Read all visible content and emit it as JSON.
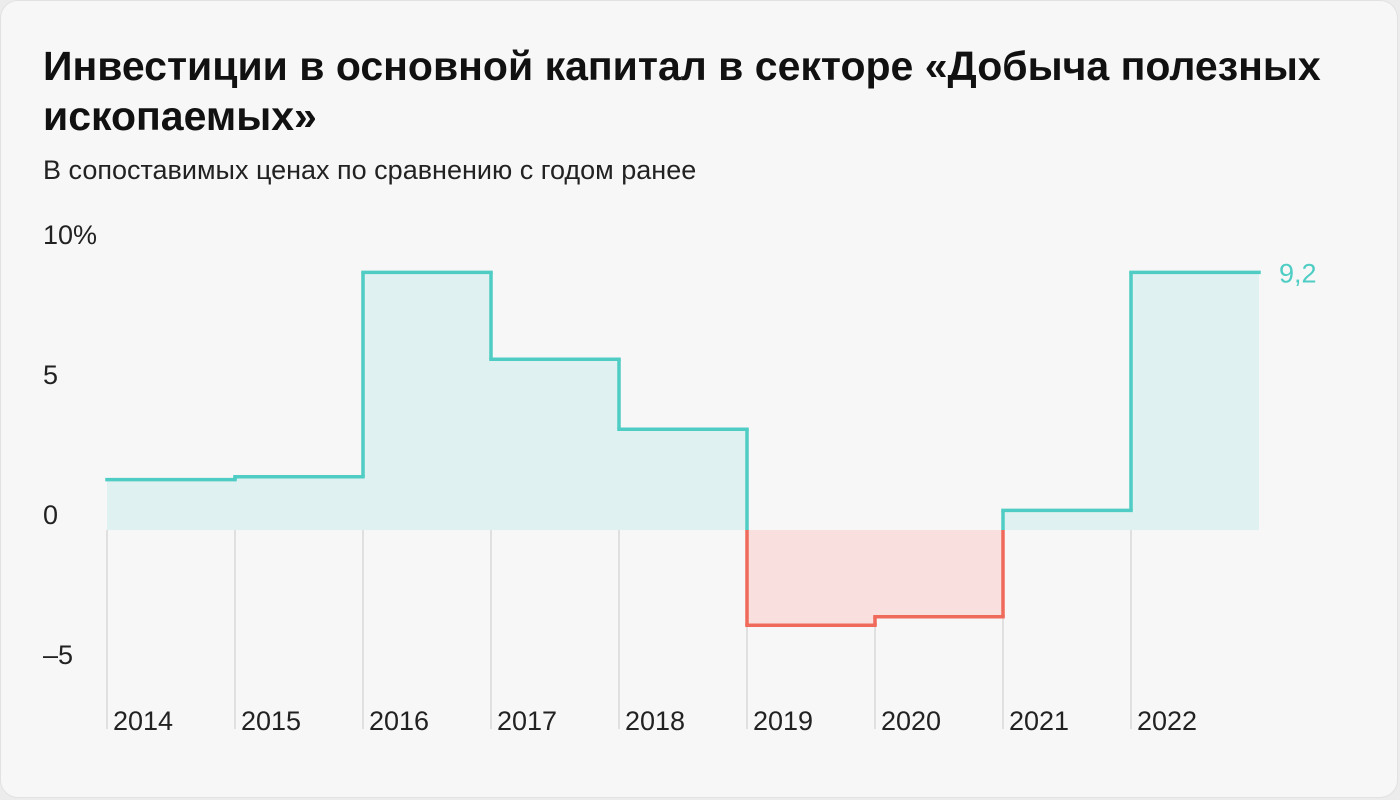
{
  "chart_data": {
    "type": "area",
    "title": "Инвестиции в основной капитал в секторе «Добыча полезных ископаемых»",
    "subtitle": "В сопоставимых ценах по сравнению с годом ранее",
    "categories": [
      "2014",
      "2015",
      "2016",
      "2017",
      "2018",
      "2019",
      "2020",
      "2021",
      "2022"
    ],
    "series": [
      {
        "values": [
          1.8,
          1.9,
          9.2,
          6.1,
          3.6,
          -3.4,
          -3.1,
          0.7,
          9.2
        ]
      }
    ],
    "ylim": [
      -6.5,
      10
    ],
    "y_ticks": [
      {
        "value": 10,
        "label": "10%"
      },
      {
        "value": 5,
        "label": "5"
      },
      {
        "value": 0,
        "label": "0"
      },
      {
        "value": -5,
        "label": "–5"
      }
    ],
    "end_label": "9,2",
    "step": true,
    "colors": {
      "positive_line": "#4fcdc4",
      "positive_fill": "#dff1f0",
      "negative_line": "#ef6a5a",
      "negative_fill": "#f9e0de",
      "grid": "#d9d9d9"
    }
  }
}
